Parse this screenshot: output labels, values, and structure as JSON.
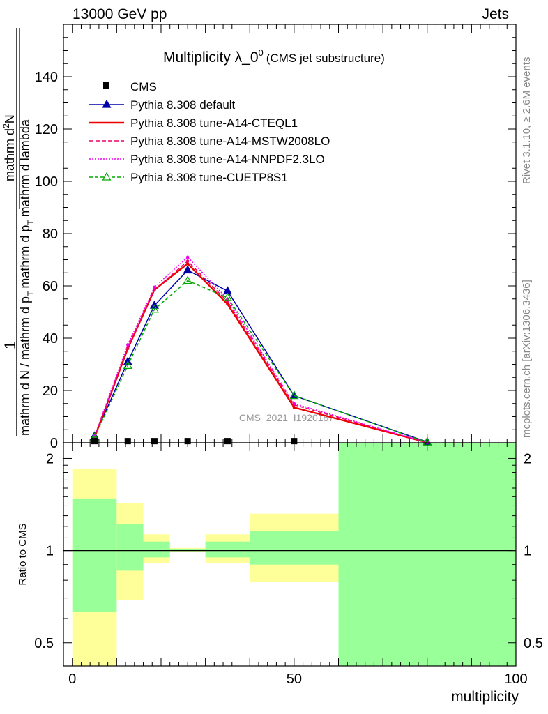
{
  "header": {
    "left": "13000 GeV pp",
    "right": "Jets"
  },
  "title": {
    "main": "Multiplicity λ_0",
    "sup": "0",
    "sub": "(CMS jet substructure)"
  },
  "watermark": "CMS_2021_I1920187",
  "side_labels": {
    "top": "Rivet 3.1.10, ≥ 2.6M events",
    "bottom": "mcplots.cern.ch [arXiv:1306.3436]"
  },
  "chart_data": {
    "type": "line",
    "main_panel": {
      "ylabel": "1 / (mathrm d N / mathrm d p_T) · mathrm d²N / (mathrm d p_T mathrm d lambda)",
      "ylabel_parts": {
        "num_one": "1",
        "den": "mathrm d N / mathrm d p",
        "den_sub": "T",
        "frac_num": "mathrm d",
        "frac_num_sup": "2",
        "frac_num_tail": "N",
        "frac_den": "mathrm d p",
        "frac_den_sub": "T",
        "frac_den_tail": "mathrm d lambda"
      },
      "ylim": [
        0,
        160
      ],
      "yticks": [
        0,
        20,
        40,
        60,
        80,
        100,
        120,
        140
      ],
      "xlim": [
        -2,
        100
      ],
      "cms": {
        "name": "CMS",
        "x": [
          5,
          12.5,
          18.5,
          26,
          35,
          50
        ],
        "y": [
          0.5,
          0.5,
          0.5,
          0.5,
          0.5,
          0.5
        ]
      },
      "series": [
        {
          "name": "Pythia 8.308 default",
          "color": "#0000aa",
          "dash": "",
          "marker": "triangle-filled",
          "x": [
            5,
            12.5,
            18.5,
            26,
            35,
            50,
            80
          ],
          "y": [
            2.5,
            31,
            52.5,
            66,
            58,
            18,
            0.3
          ]
        },
        {
          "name": "Pythia 8.308 tune-A14-CTEQL1",
          "color": "#ee0000",
          "dash": "",
          "marker": "none",
          "x": [
            5,
            12.5,
            18.5,
            26,
            35,
            50,
            80
          ],
          "y": [
            2,
            36,
            58.5,
            68.5,
            53,
            13.5,
            0.1
          ]
        },
        {
          "name": "Pythia 8.308 tune-A14-MSTW2008LO",
          "color": "#ee0066",
          "dash": "6,3",
          "marker": "none",
          "x": [
            5,
            12.5,
            18.5,
            26,
            35,
            50,
            80
          ],
          "y": [
            2,
            36.5,
            58.5,
            69.5,
            54,
            14.5,
            0.1
          ]
        },
        {
          "name": "Pythia 8.308 tune-A14-NNPDF2.3LO",
          "color": "#ee00ee",
          "dash": "2,2",
          "marker": "none",
          "x": [
            5,
            12.5,
            18.5,
            26,
            35,
            50,
            80
          ],
          "y": [
            2.5,
            37.5,
            59.5,
            71,
            55,
            15,
            0.1
          ]
        },
        {
          "name": "Pythia 8.308 tune-CUETP8S1",
          "color": "#00aa00",
          "dash": "5,3",
          "marker": "triangle-open",
          "x": [
            5,
            12.5,
            18.5,
            26,
            35,
            50,
            80
          ],
          "y": [
            2,
            29.5,
            51,
            62,
            55.5,
            18,
            0.2
          ]
        }
      ]
    },
    "ratio_panel": {
      "ylabel": "Ratio to CMS",
      "ylim": [
        0.42,
        2.25
      ],
      "yticks": [
        0.5,
        1,
        2
      ],
      "ytick_labels": [
        "0.5",
        "1",
        "2"
      ],
      "xlim": [
        -2,
        100
      ],
      "xticks": [
        0,
        50,
        100
      ],
      "xtick_labels": [
        "0",
        "50",
        "100"
      ],
      "xlabel": "multiplicity",
      "bands": [
        {
          "x0": 0,
          "x1": 10,
          "yellow": [
            0.4,
            1.85
          ],
          "green": [
            0.63,
            1.48
          ]
        },
        {
          "x0": 10,
          "x1": 16,
          "yellow": [
            0.69,
            1.43
          ],
          "green": [
            0.86,
            1.22
          ]
        },
        {
          "x0": 16,
          "x1": 22,
          "yellow": [
            0.91,
            1.13
          ],
          "green": [
            0.95,
            1.07
          ]
        },
        {
          "x0": 22,
          "x1": 30,
          "yellow": [
            0.99,
            1.02
          ],
          "green": [
            0.995,
            1.01
          ]
        },
        {
          "x0": 30,
          "x1": 40,
          "yellow": [
            0.91,
            1.13
          ],
          "green": [
            0.95,
            1.07
          ]
        },
        {
          "x0": 40,
          "x1": 60,
          "yellow": [
            0.79,
            1.32
          ],
          "green": [
            0.9,
            1.16
          ]
        },
        {
          "x0": 60,
          "x1": 100,
          "yellow": [
            0.4,
            2.3
          ],
          "green": [
            0.4,
            2.3
          ]
        }
      ]
    }
  },
  "colors": {
    "yellow_band": "#ffff99",
    "green_band": "#99ff99"
  }
}
